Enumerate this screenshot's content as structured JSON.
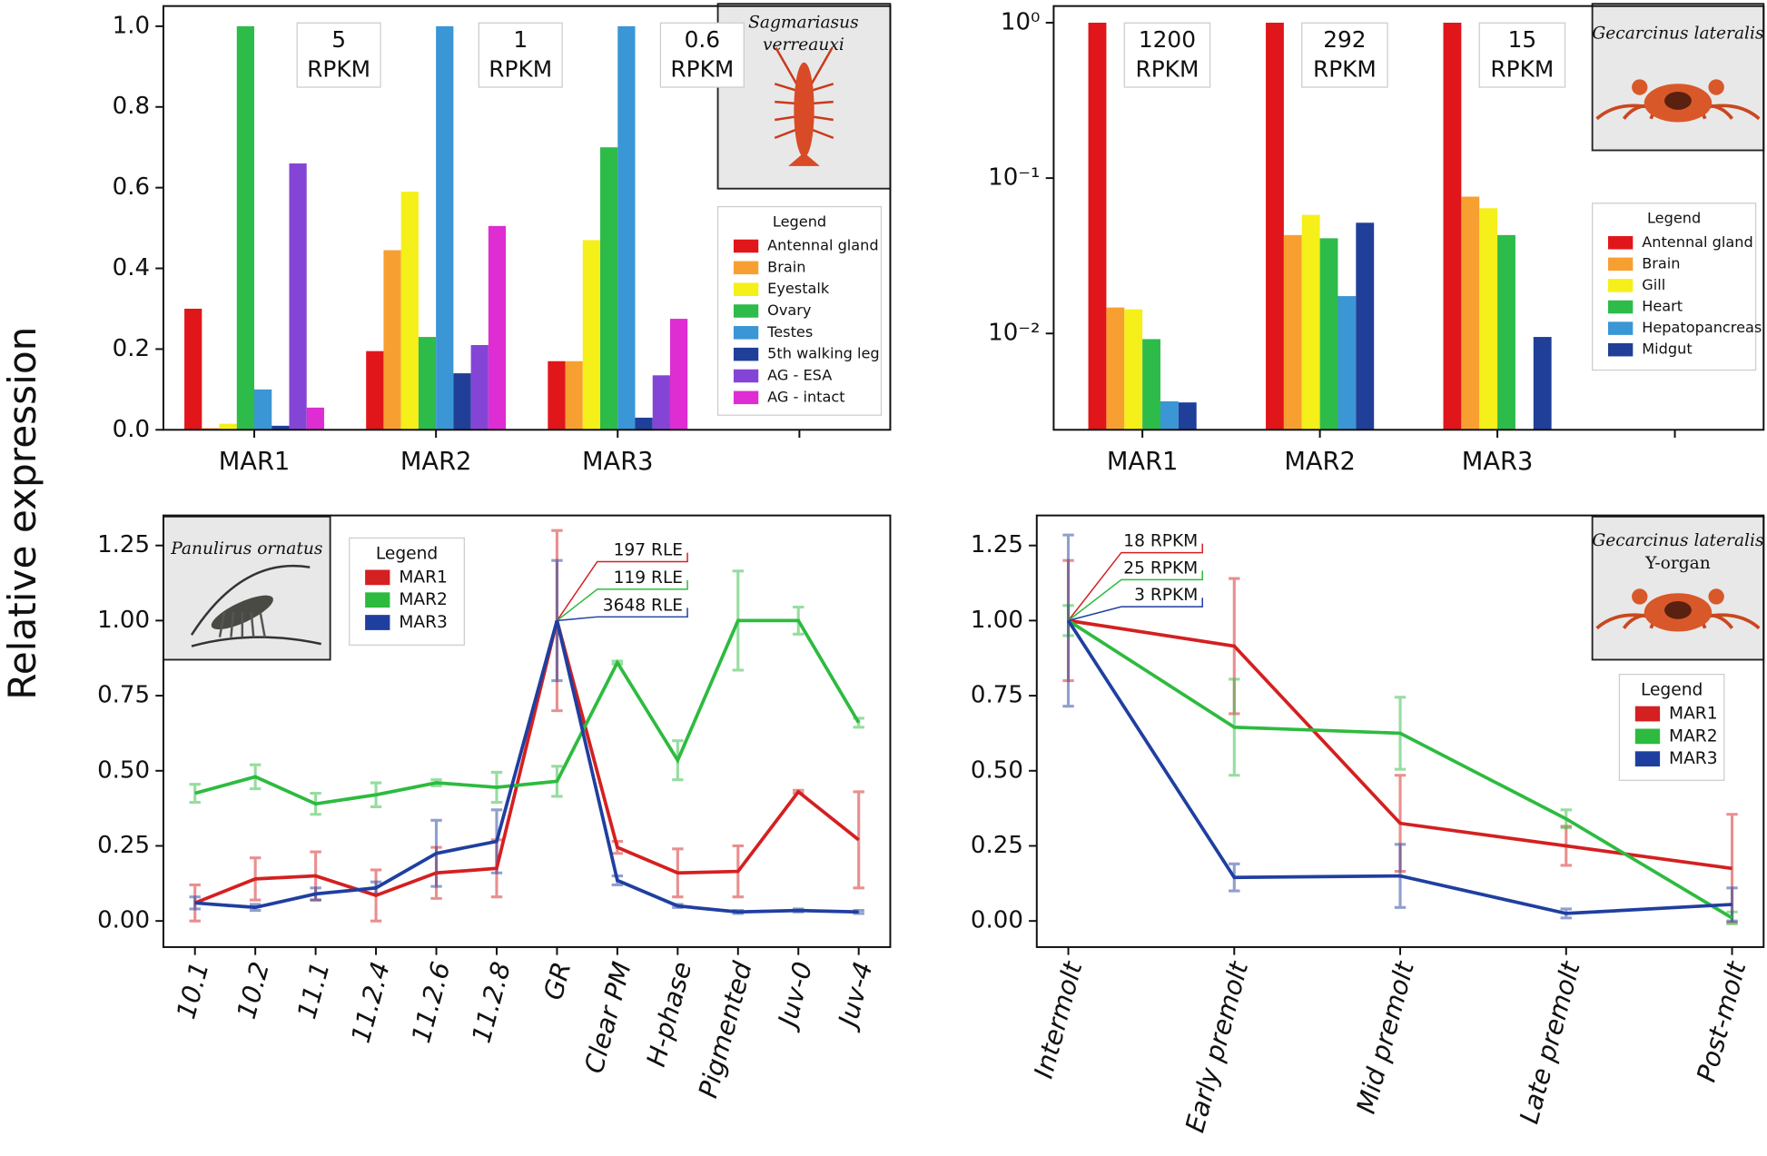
{
  "y_label": "Relative expression",
  "chart_data": [
    {
      "type": "bar",
      "categories": [
        "MAR1",
        "MAR2",
        "MAR3",
        null
      ],
      "series": [
        {
          "name": "Antennal gland",
          "color": "#e0161b",
          "values": [
            0.3,
            0.195,
            0.17,
            null
          ]
        },
        {
          "name": "Brain",
          "color": "#f7a031",
          "values": [
            0.004,
            0.445,
            0.17,
            null
          ]
        },
        {
          "name": "Eyestalk",
          "color": "#f5ef1a",
          "values": [
            0.015,
            0.59,
            0.47,
            null
          ]
        },
        {
          "name": "Ovary",
          "color": "#2dbb4a",
          "values": [
            1.0,
            0.23,
            0.7,
            null
          ]
        },
        {
          "name": "Testes",
          "color": "#3a96d4",
          "values": [
            0.1,
            1.0,
            1.0,
            null
          ]
        },
        {
          "name": "5th walking leg",
          "color": "#1f3f99",
          "values": [
            0.01,
            0.14,
            0.03,
            null
          ]
        },
        {
          "name": "AG - ESA",
          "color": "#8445d6",
          "values": [
            0.66,
            0.21,
            0.135,
            null
          ]
        },
        {
          "name": "AG - intact",
          "color": "#de2dd2",
          "values": [
            0.055,
            0.505,
            0.275,
            null
          ]
        }
      ],
      "ylim": [
        0,
        1.05
      ],
      "yticks": [
        {
          "value": 0,
          "label": "0.0"
        },
        0.2,
        0.4,
        0.6,
        0.8,
        {
          "value": 1,
          "label": "1.0"
        }
      ],
      "annotations": [
        {
          "lines": [
            "5",
            "RPKM"
          ]
        },
        {
          "lines": [
            "1",
            "RPKM"
          ]
        },
        {
          "lines": [
            "0.6",
            "RPKM"
          ]
        }
      ],
      "legend_title": "Legend",
      "species": [
        "Sagmariasus",
        "verreauxi"
      ]
    },
    {
      "type": "bar",
      "log_scale": true,
      "categories": [
        "MAR1",
        "MAR2",
        "MAR3",
        null
      ],
      "series": [
        {
          "name": "Antennal gland",
          "color": "#e0161b",
          "values": [
            1.0,
            1.0,
            1.0,
            null
          ]
        },
        {
          "name": "Brain",
          "color": "#f7a031",
          "values": [
            0.0147,
            0.043,
            0.076,
            null
          ]
        },
        {
          "name": "Gill",
          "color": "#f5ef1a",
          "values": [
            0.0143,
            0.058,
            0.064,
            null
          ]
        },
        {
          "name": "Heart",
          "color": "#2dbb4a",
          "values": [
            0.0092,
            0.041,
            0.043,
            null
          ]
        },
        {
          "name": "Hepatopancreas",
          "color": "#3a96d4",
          "values": [
            0.00366,
            0.0174,
            null,
            null
          ]
        },
        {
          "name": "Midgut",
          "color": "#1f3f99",
          "values": [
            0.0036,
            0.0516,
            0.0095,
            null
          ]
        }
      ],
      "ylim": [
        0.0024,
        1.28
      ],
      "yticks": [
        {
          "value": 0.01,
          "label": "10⁻²"
        },
        {
          "value": 0.1,
          "label": "10⁻¹"
        },
        {
          "value": 1,
          "label": "10⁰"
        }
      ],
      "annotations": [
        {
          "lines": [
            "1200",
            "RPKM"
          ]
        },
        {
          "lines": [
            "292",
            "RPKM"
          ]
        },
        {
          "lines": [
            "15",
            "RPKM"
          ]
        }
      ],
      "legend_title": "Legend",
      "species": [
        "Gecarcinus lateralis"
      ]
    },
    {
      "type": "line",
      "categories": [
        "10.1",
        "10.2",
        "11.1",
        "11.2.4",
        "11.2.6",
        "11.2.8",
        "GR",
        "Clear PM",
        "H-phase",
        "Pigmented",
        "Juv-0",
        "Juv-4"
      ],
      "series": [
        {
          "name": "MAR1",
          "color": "#d42020",
          "values": [
            0.06,
            0.14,
            0.15,
            0.085,
            0.16,
            0.175,
            1.0,
            0.245,
            0.16,
            0.165,
            0.43,
            0.27
          ],
          "errors": [
            0.06,
            0.07,
            0.08,
            0.085,
            0.085,
            0.095,
            0.3,
            0.02,
            0.08,
            0.085,
            0.005,
            0.16
          ]
        },
        {
          "name": "MAR2",
          "color": "#2dbb3f",
          "values": [
            0.425,
            0.48,
            0.39,
            0.42,
            0.46,
            0.445,
            0.465,
            0.86,
            0.535,
            1.0,
            1.0,
            0.66
          ],
          "errors": [
            0.03,
            0.04,
            0.035,
            0.04,
            0.01,
            0.05,
            0.05,
            0.005,
            0.065,
            0.165,
            0.045,
            0.015
          ]
        },
        {
          "name": "MAR3",
          "color": "#1f3fa0",
          "values": [
            0.06,
            0.045,
            0.09,
            0.11,
            0.225,
            0.265,
            1.0,
            0.135,
            0.05,
            0.03,
            0.035,
            0.03
          ],
          "errors": [
            0.02,
            0.01,
            0.02,
            0.02,
            0.11,
            0.105,
            0.2,
            0.015,
            0.005,
            0.005,
            0.005,
            0.005
          ]
        }
      ],
      "ylim": [
        -0.087,
        1.35
      ],
      "yticks": [
        {
          "value": 0,
          "label": "0.00"
        },
        {
          "value": 0.25,
          "label": "0.25"
        },
        {
          "value": 0.5,
          "label": "0.50"
        },
        {
          "value": 0.75,
          "label": "0.75"
        },
        {
          "value": 1,
          "label": "1.00"
        },
        {
          "value": 1.25,
          "label": "1.25"
        }
      ],
      "annotations": [
        {
          "text": "197 RLE",
          "color": "#d42020"
        },
        {
          "text": "119 RLE",
          "color": "#2dbb3f"
        },
        {
          "text": "3648 RLE",
          "color": "#1f3fa0"
        }
      ],
      "legend_title": "Legend",
      "species": [
        "Panulirus ornatus"
      ]
    },
    {
      "type": "line",
      "categories": [
        "Intermolt",
        "Early premolt",
        "Mid premolt",
        "Late premolt",
        "Post-molt"
      ],
      "series": [
        {
          "name": "MAR1",
          "color": "#d42020",
          "values": [
            1.0,
            0.915,
            0.325,
            0.25,
            0.175
          ],
          "errors": [
            0.2,
            0.225,
            0.16,
            0.065,
            0.18
          ]
        },
        {
          "name": "MAR2",
          "color": "#2dbb3f",
          "values": [
            1.0,
            0.645,
            0.625,
            0.34,
            0.01
          ],
          "errors": [
            0.05,
            0.16,
            0.12,
            0.03,
            0.02
          ]
        },
        {
          "name": "MAR3",
          "color": "#1f3fa0",
          "values": [
            1.0,
            0.145,
            0.15,
            0.025,
            0.055
          ],
          "errors": [
            0.285,
            0.045,
            0.105,
            0.015,
            0.055
          ]
        }
      ],
      "ylim": [
        -0.087,
        1.35
      ],
      "yticks": [
        {
          "value": 0,
          "label": "0.00"
        },
        {
          "value": 0.25,
          "label": "0.25"
        },
        {
          "value": 0.5,
          "label": "0.50"
        },
        {
          "value": 0.75,
          "label": "0.75"
        },
        {
          "value": 1,
          "label": "1.00"
        },
        {
          "value": 1.25,
          "label": "1.25"
        }
      ],
      "annotations": [
        {
          "text": "18 RPKM",
          "color": "#d42020"
        },
        {
          "text": "25 RPKM",
          "color": "#2dbb3f"
        },
        {
          "text": "3 RPKM",
          "color": "#1f3fa0"
        }
      ],
      "legend_title": "Legend",
      "species": [
        "Gecarcinus lateralis",
        "Y-organ"
      ]
    }
  ]
}
